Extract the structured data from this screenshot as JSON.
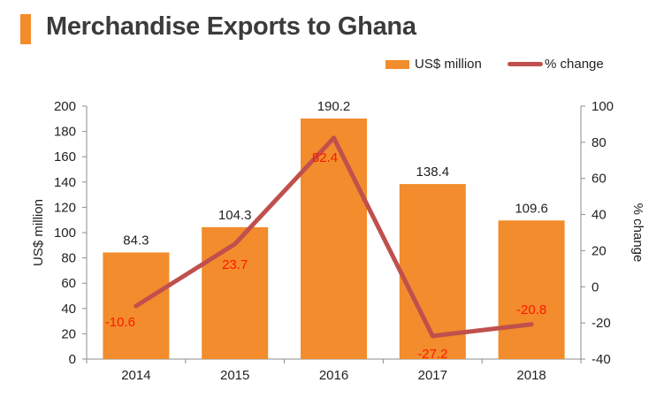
{
  "title": "Merchandise Exports to Ghana",
  "colors": {
    "accent": "#f28c2c",
    "bar": "#f28c2c",
    "line": "#c0504d",
    "change_label": "#ff1a00",
    "text": "#222222"
  },
  "chart_data": {
    "type": "bar",
    "categories": [
      "2014",
      "2015",
      "2016",
      "2017",
      "2018"
    ],
    "series": [
      {
        "name": "US$ million",
        "type": "bar",
        "axis": "left",
        "values": [
          84.3,
          104.3,
          190.2,
          138.4,
          109.6
        ]
      },
      {
        "name": "% change",
        "type": "line",
        "axis": "right",
        "values": [
          -10.6,
          23.7,
          82.4,
          -27.2,
          -20.8
        ]
      }
    ],
    "ylabel": "US$ million",
    "y2label": "% change",
    "ylim": [
      0,
      200
    ],
    "y2lim": [
      -40,
      100
    ],
    "yticks": [
      "0",
      "20",
      "40",
      "60",
      "80",
      "100",
      "120",
      "140",
      "160",
      "180",
      "200"
    ],
    "y2ticks": [
      "-40",
      "-20",
      "0",
      "20",
      "40",
      "60",
      "80",
      "100"
    ],
    "legend_position": "top-right",
    "grid": false
  }
}
